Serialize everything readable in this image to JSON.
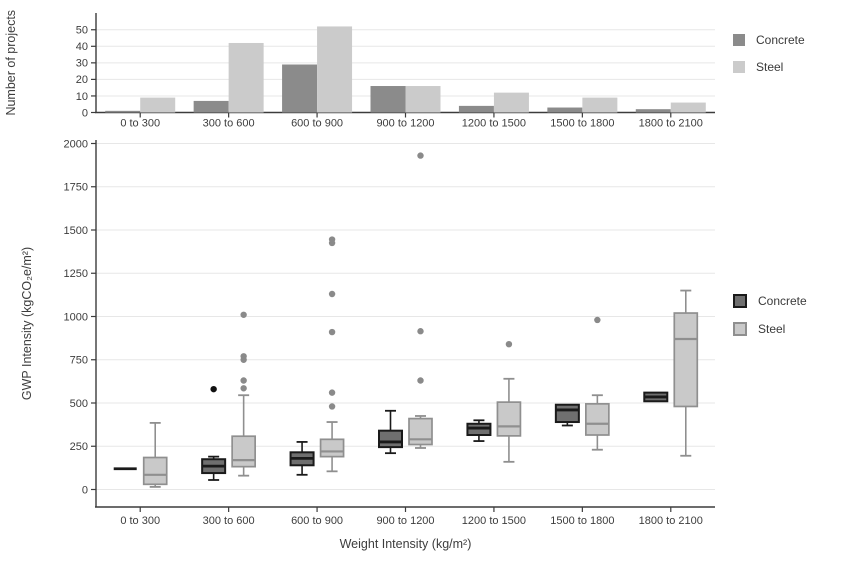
{
  "chart_data": [
    {
      "type": "bar",
      "title": "",
      "ylabel": "Number of projects",
      "xlabel": "",
      "yticks": [
        0,
        10,
        20,
        30,
        40,
        50
      ],
      "ylim": [
        0,
        60
      ],
      "grid": true,
      "legend_position": "right",
      "categories": [
        "0 to 300",
        "300 to 600",
        "600 to 900",
        "900 to 1200",
        "1200 to 1500",
        "1500 to 1800",
        "1800 to 2100"
      ],
      "series": [
        {
          "name": "Concrete",
          "color": "#8b8b8b",
          "values": [
            1,
            7,
            29,
            16,
            4,
            3,
            2
          ]
        },
        {
          "name": "Steel",
          "color": "#cbcbcb",
          "values": [
            9,
            42,
            52,
            16,
            12,
            9,
            6
          ]
        }
      ]
    },
    {
      "type": "box",
      "title": "",
      "ylabel": "GWP Intensity (kgCO₂e/m²)",
      "xlabel": "Weight Intensity (kg/m²)",
      "yticks": [
        0,
        250,
        500,
        750,
        1000,
        1250,
        1500,
        1750,
        2000
      ],
      "ylim": [
        -100,
        2020
      ],
      "grid": true,
      "legend_position": "right",
      "categories": [
        "0 to 300",
        "300 to 600",
        "600 to 900",
        "900 to 1200",
        "1200 to 1500",
        "1500 to 1800",
        "1800 to 2100"
      ],
      "series": [
        {
          "name": "Concrete",
          "fill": "#6f6f6f",
          "stroke": "#1a1a1a",
          "outlier_color": "#111111",
          "boxes": [
            {
              "min": 120,
              "q1": 120,
              "med": 120,
              "q3": 120,
              "max": 120,
              "outliers": []
            },
            {
              "min": 55,
              "q1": 95,
              "med": 135,
              "q3": 175,
              "max": 190,
              "outliers": [
                580
              ]
            },
            {
              "min": 85,
              "q1": 140,
              "med": 180,
              "q3": 215,
              "max": 275,
              "outliers": []
            },
            {
              "min": 210,
              "q1": 245,
              "med": 275,
              "q3": 340,
              "max": 455,
              "outliers": []
            },
            {
              "min": 280,
              "q1": 315,
              "med": 355,
              "q3": 380,
              "max": 400,
              "outliers": []
            },
            {
              "min": 370,
              "q1": 390,
              "med": 460,
              "q3": 490,
              "max": 490,
              "outliers": []
            },
            {
              "min": 510,
              "q1": 510,
              "med": 535,
              "q3": 560,
              "max": 560,
              "outliers": []
            }
          ]
        },
        {
          "name": "Steel",
          "fill": "#c9c9c9",
          "stroke": "#8f8f8f",
          "outlier_color": "#8a8a8a",
          "boxes": [
            {
              "min": 15,
              "q1": 30,
              "med": 85,
              "q3": 185,
              "max": 385,
              "outliers": []
            },
            {
              "min": 80,
              "q1": 132,
              "med": 170,
              "q3": 308,
              "max": 545,
              "outliers": [
                585,
                630,
                750,
                770,
                1010
              ]
            },
            {
              "min": 105,
              "q1": 190,
              "med": 220,
              "q3": 290,
              "max": 390,
              "outliers": [
                480,
                560,
                910,
                1130,
                1425,
                1445
              ]
            },
            {
              "min": 240,
              "q1": 260,
              "med": 290,
              "q3": 410,
              "max": 425,
              "outliers": [
                630,
                915,
                1930
              ]
            },
            {
              "min": 160,
              "q1": 310,
              "med": 365,
              "q3": 505,
              "max": 640,
              "outliers": [
                840
              ]
            },
            {
              "min": 230,
              "q1": 315,
              "med": 380,
              "q3": 495,
              "max": 545,
              "outliers": [
                980
              ]
            },
            {
              "min": 195,
              "q1": 480,
              "med": 870,
              "q3": 1020,
              "max": 1150,
              "outliers": []
            }
          ]
        }
      ]
    }
  ]
}
